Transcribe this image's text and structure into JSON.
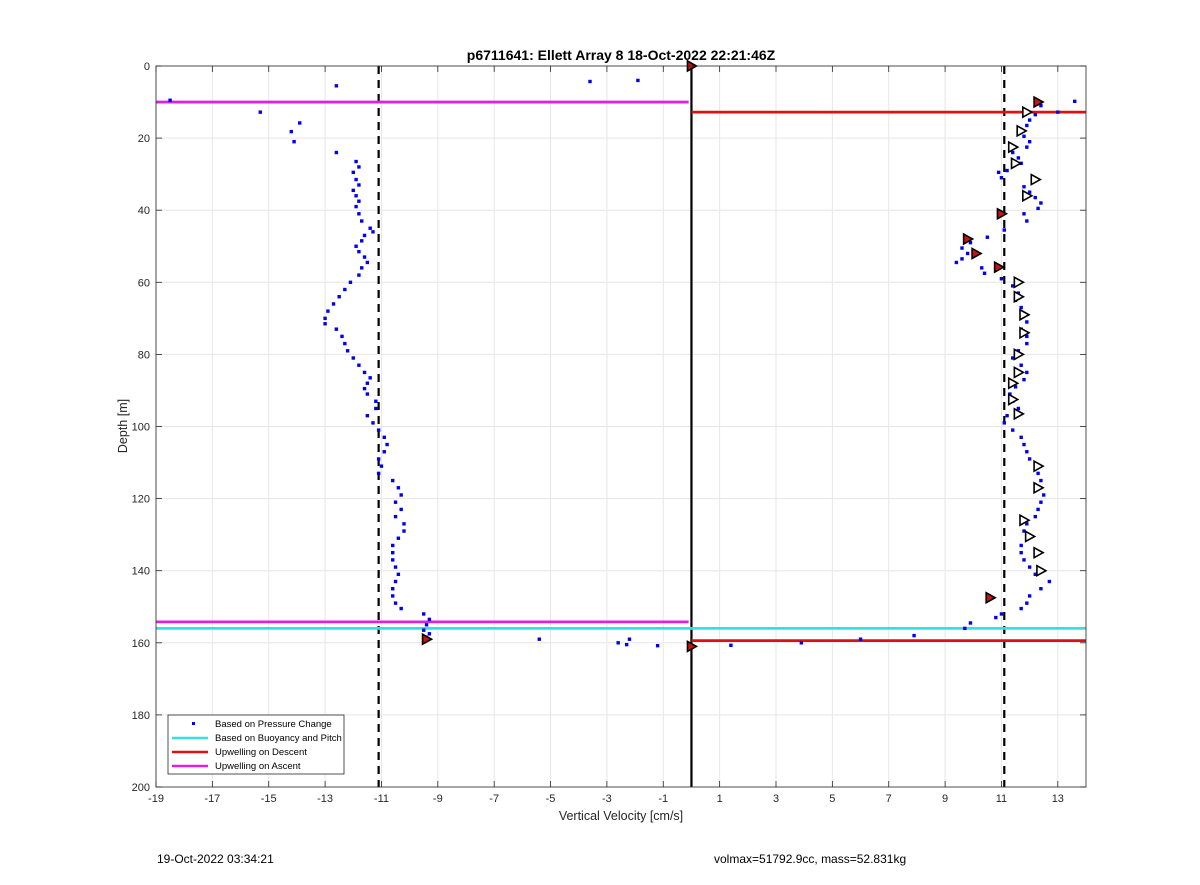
{
  "footer": {
    "left": "19-Oct-2022 03:34:21",
    "right": "volmax=51792.9cc, mass=52.831kg"
  },
  "colors": {
    "pressure": "#0000ee",
    "buoyancy": "#33e0e6",
    "descent": "#dd1111",
    "ascent": "#dd22dd",
    "grid": "#e6e6e6",
    "triangle_fill_red": "#cc1111"
  },
  "chart_data": {
    "type": "scatter",
    "title": "p6711641: Ellett Array 8 18-Oct-2022 22:21:46Z",
    "xlabel": "Vertical Velocity [cm/s]",
    "ylabel": "Depth [m]",
    "xlim": [
      -19,
      14
    ],
    "ylim": [
      0,
      200
    ],
    "y_reversed": true,
    "grid": true,
    "x_ticks": [
      -19,
      -17,
      -15,
      -13,
      -11,
      -9,
      -7,
      -5,
      -3,
      -1,
      1,
      3,
      5,
      7,
      9,
      11,
      13
    ],
    "y_ticks": [
      0,
      20,
      40,
      60,
      80,
      100,
      120,
      140,
      160,
      180,
      200
    ],
    "x_tick_labels": [
      "-19",
      "-17",
      "-15",
      "-13",
      "-11",
      "-9",
      "-7",
      "-5",
      "-3",
      "-1",
      "1",
      "3",
      "5",
      "7",
      "9",
      "11",
      "13"
    ],
    "y_tick_labels": [
      "0",
      "20",
      "40",
      "60",
      "80",
      "100",
      "120",
      "140",
      "160",
      "180",
      "200"
    ],
    "legend": {
      "placement": "bottom-left",
      "entries": [
        {
          "label": "Based on Pressure Change",
          "style": "dot",
          "color": "#0000ee"
        },
        {
          "label": "Based on Buoyancy and Pitch",
          "style": "line",
          "color": "#33e0e6"
        },
        {
          "label": "Upwelling on Descent",
          "style": "line",
          "color": "#dd1111"
        },
        {
          "label": "Upwelling on Ascent",
          "style": "line",
          "color": "#dd22dd"
        }
      ]
    },
    "reference_lines": {
      "vertical_solid": [
        0
      ],
      "vertical_dashed": [
        -11.1,
        11.1
      ]
    },
    "horizontal_lines": [
      {
        "name": "Upwelling on Ascent",
        "depth": 10.0,
        "x_start": -19,
        "x_end": -0.1,
        "color": "#dd22dd"
      },
      {
        "name": "Upwelling on Descent",
        "depth": 12.8,
        "x_start": 0,
        "x_end": 14,
        "color": "#dd1111"
      },
      {
        "name": "Upwelling on Ascent",
        "depth": 154.2,
        "x_start": -19,
        "x_end": -0.1,
        "color": "#dd22dd"
      },
      {
        "name": "Based on Buoyancy and Pitch",
        "depth": 156.0,
        "x_start": -19,
        "x_end": 14,
        "color": "#33e0e6"
      },
      {
        "name": "Upwelling on Descent",
        "depth": 159.4,
        "x_start": 0,
        "x_end": 14,
        "color": "#dd1111"
      }
    ],
    "series": [
      {
        "name": "Based on Pressure Change",
        "points": [
          [
            -18.5,
            9.5
          ],
          [
            -12.6,
            5.5
          ],
          [
            -15.3,
            12.8
          ],
          [
            -13.9,
            15.8
          ],
          [
            -14.2,
            18.2
          ],
          [
            -14.1,
            21.0
          ],
          [
            -12.6,
            24.0
          ],
          [
            -11.9,
            26.5
          ],
          [
            -11.8,
            28.0
          ],
          [
            -12.0,
            29.5
          ],
          [
            -11.9,
            31.5
          ],
          [
            -11.8,
            33.0
          ],
          [
            -12.0,
            34.5
          ],
          [
            -11.9,
            36.0
          ],
          [
            -11.8,
            37.5
          ],
          [
            -11.9,
            39.0
          ],
          [
            -11.8,
            41.0
          ],
          [
            -11.7,
            43.0
          ],
          [
            -11.4,
            45.0
          ],
          [
            -11.3,
            46.0
          ],
          [
            -11.6,
            47.0
          ],
          [
            -11.7,
            48.5
          ],
          [
            -11.9,
            50.0
          ],
          [
            -11.8,
            51.5
          ],
          [
            -11.6,
            53.0
          ],
          [
            -11.5,
            54.5
          ],
          [
            -11.7,
            56.0
          ],
          [
            -11.8,
            58.0
          ],
          [
            -12.1,
            60.0
          ],
          [
            -12.3,
            62.0
          ],
          [
            -12.5,
            64.0
          ],
          [
            -12.7,
            66.0
          ],
          [
            -12.9,
            68.0
          ],
          [
            -13.0,
            70.0
          ],
          [
            -13.0,
            71.5
          ],
          [
            -12.6,
            73.0
          ],
          [
            -12.4,
            75.0
          ],
          [
            -12.3,
            77.0
          ],
          [
            -12.2,
            79.0
          ],
          [
            -12.0,
            81.0
          ],
          [
            -11.8,
            83.0
          ],
          [
            -11.6,
            85.0
          ],
          [
            -11.4,
            86.5
          ],
          [
            -11.5,
            88.0
          ],
          [
            -11.6,
            89.5
          ],
          [
            -11.5,
            91.0
          ],
          [
            -11.2,
            93.0
          ],
          [
            -11.2,
            95.0
          ],
          [
            -11.5,
            97.0
          ],
          [
            -11.3,
            99.0
          ],
          [
            -11.1,
            101.0
          ],
          [
            -10.9,
            103.0
          ],
          [
            -10.8,
            105.0
          ],
          [
            -10.9,
            107.0
          ],
          [
            -11.1,
            109.0
          ],
          [
            -11.0,
            111.0
          ],
          [
            -11.1,
            113.0
          ],
          [
            -10.6,
            115.0
          ],
          [
            -10.4,
            117.0
          ],
          [
            -10.3,
            119.0
          ],
          [
            -10.5,
            121.0
          ],
          [
            -10.3,
            123.0
          ],
          [
            -10.5,
            125.0
          ],
          [
            -10.2,
            127.0
          ],
          [
            -10.2,
            129.0
          ],
          [
            -10.4,
            131.0
          ],
          [
            -10.6,
            133.0
          ],
          [
            -10.6,
            135.0
          ],
          [
            -10.6,
            137.0
          ],
          [
            -10.5,
            139.0
          ],
          [
            -10.4,
            141.0
          ],
          [
            -10.5,
            143.0
          ],
          [
            -10.6,
            145.0
          ],
          [
            -10.6,
            147.0
          ],
          [
            -10.5,
            149.0
          ],
          [
            -10.3,
            150.5
          ],
          [
            -9.5,
            152.0
          ],
          [
            -9.3,
            153.5
          ],
          [
            -9.4,
            155.0
          ],
          [
            -9.5,
            156.5
          ],
          [
            -9.3,
            157.5
          ],
          [
            -9.4,
            158.5
          ],
          [
            -5.4,
            159.0
          ],
          [
            -2.6,
            160.0
          ],
          [
            -2.2,
            159.0
          ],
          [
            -2.3,
            160.5
          ],
          [
            -1.2,
            160.8
          ],
          [
            -3.6,
            4.3
          ],
          [
            -1.9,
            4.0
          ],
          [
            1.4,
            160.7
          ],
          [
            3.9,
            160.0
          ],
          [
            6.0,
            159.0
          ],
          [
            7.9,
            158.0
          ],
          [
            13.6,
            9.8
          ],
          [
            13.0,
            12.8
          ],
          [
            12.4,
            11.0
          ],
          [
            12.2,
            13.5
          ],
          [
            12.0,
            15.0
          ],
          [
            11.9,
            16.5
          ],
          [
            11.6,
            18.0
          ],
          [
            11.8,
            19.5
          ],
          [
            12.0,
            21.0
          ],
          [
            11.9,
            22.5
          ],
          [
            11.4,
            24.0
          ],
          [
            11.6,
            25.5
          ],
          [
            11.7,
            27.0
          ],
          [
            11.2,
            29.0
          ],
          [
            10.9,
            29.5
          ],
          [
            11.0,
            31.0
          ],
          [
            11.8,
            33.5
          ],
          [
            12.0,
            35.0
          ],
          [
            12.2,
            36.5
          ],
          [
            12.4,
            38.0
          ],
          [
            12.3,
            39.5
          ],
          [
            11.8,
            41.0
          ],
          [
            11.9,
            43.0
          ],
          [
            11.1,
            45.5
          ],
          [
            10.5,
            47.5
          ],
          [
            9.9,
            49.0
          ],
          [
            9.6,
            50.5
          ],
          [
            9.8,
            52.0
          ],
          [
            9.6,
            53.5
          ],
          [
            9.4,
            54.5
          ],
          [
            10.3,
            56.0
          ],
          [
            10.4,
            57.5
          ],
          [
            11.0,
            59.0
          ],
          [
            11.4,
            61.0
          ],
          [
            11.6,
            63.0
          ],
          [
            11.5,
            65.0
          ],
          [
            11.7,
            67.0
          ],
          [
            11.8,
            69.0
          ],
          [
            11.9,
            71.0
          ],
          [
            11.7,
            73.0
          ],
          [
            11.9,
            75.0
          ],
          [
            11.9,
            77.0
          ],
          [
            11.6,
            79.0
          ],
          [
            11.4,
            81.0
          ],
          [
            11.7,
            83.0
          ],
          [
            11.9,
            85.0
          ],
          [
            11.8,
            87.0
          ],
          [
            11.5,
            89.0
          ],
          [
            11.3,
            91.0
          ],
          [
            11.4,
            93.0
          ],
          [
            11.6,
            95.0
          ],
          [
            11.2,
            97.0
          ],
          [
            11.1,
            99.0
          ],
          [
            11.4,
            101.0
          ],
          [
            11.7,
            103.0
          ],
          [
            11.8,
            105.0
          ],
          [
            11.9,
            107.0
          ],
          [
            12.0,
            109.0
          ],
          [
            12.2,
            111.0
          ],
          [
            12.3,
            113.0
          ],
          [
            12.4,
            115.0
          ],
          [
            12.3,
            117.0
          ],
          [
            12.5,
            119.0
          ],
          [
            12.4,
            121.0
          ],
          [
            12.3,
            123.0
          ],
          [
            12.2,
            125.0
          ],
          [
            11.9,
            127.0
          ],
          [
            11.8,
            129.0
          ],
          [
            11.9,
            131.0
          ],
          [
            11.7,
            133.0
          ],
          [
            11.7,
            135.0
          ],
          [
            11.8,
            137.0
          ],
          [
            12.0,
            139.0
          ],
          [
            12.2,
            141.0
          ],
          [
            12.7,
            143.0
          ],
          [
            12.4,
            145.0
          ],
          [
            12.0,
            147.0
          ],
          [
            11.9,
            149.0
          ],
          [
            11.7,
            150.5
          ],
          [
            11.0,
            152.0
          ],
          [
            10.8,
            153.0
          ],
          [
            9.9,
            154.5
          ],
          [
            9.7,
            156.0
          ]
        ]
      },
      {
        "name": "Triangle markers (outline)",
        "points": [
          [
            11.9,
            12.8
          ],
          [
            11.7,
            18.0
          ],
          [
            11.4,
            22.5
          ],
          [
            11.5,
            27.0
          ],
          [
            12.2,
            31.5
          ],
          [
            11.9,
            36.0
          ],
          [
            11.6,
            60.0
          ],
          [
            11.6,
            64.0
          ],
          [
            11.8,
            69.0
          ],
          [
            11.8,
            74.0
          ],
          [
            11.6,
            80.0
          ],
          [
            11.6,
            85.0
          ],
          [
            11.4,
            88.0
          ],
          [
            11.4,
            92.5
          ],
          [
            11.6,
            96.5
          ],
          [
            12.3,
            111.0
          ],
          [
            12.3,
            117.0
          ],
          [
            11.8,
            126.0
          ],
          [
            12.0,
            130.5
          ],
          [
            12.3,
            135.0
          ],
          [
            12.4,
            140.0
          ]
        ]
      },
      {
        "name": "Triangle markers (filled)",
        "points": [
          [
            0.0,
            0.0
          ],
          [
            12.3,
            10.0
          ],
          [
            11.0,
            41.0
          ],
          [
            9.8,
            48.0
          ],
          [
            10.1,
            52.0
          ],
          [
            10.9,
            55.8
          ],
          [
            10.6,
            147.5
          ],
          [
            -9.4,
            159.0
          ],
          [
            0.0,
            161.0
          ]
        ]
      }
    ]
  }
}
